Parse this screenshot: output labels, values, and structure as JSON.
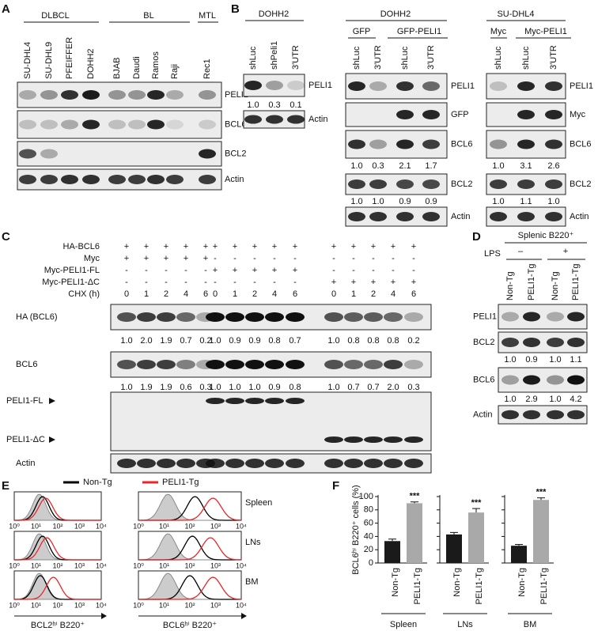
{
  "panel_labels": [
    "A",
    "B",
    "C",
    "D",
    "E",
    "F"
  ],
  "a": {
    "groups": [
      "DLBCL",
      "BL",
      "MTL"
    ],
    "lanes": [
      "SU-DHL4",
      "SU-DHL9",
      "PFEIFFER",
      "DOHH2",
      "BJAB",
      "Daudi",
      "Ramos",
      "Raji",
      "Rec1"
    ],
    "blots": [
      "PELI1",
      "BCL6",
      "BCL2",
      "Actin"
    ]
  },
  "b1": {
    "title": "DOHH2",
    "lanes": [
      "shLuc",
      "shPeli1",
      "3′UTR"
    ],
    "blots": [
      "PELI1",
      "Actin"
    ],
    "quant": [
      "1.0",
      "0.3",
      "0.1"
    ]
  },
  "b2": {
    "title": "DOHH2",
    "groups": [
      "GFP",
      "GFP-PELI1"
    ],
    "lanes": [
      "shLuc",
      "3′UTR",
      "shLuc",
      "3′UTR"
    ],
    "blots": [
      "PELI1",
      "GFP",
      "BCL6",
      "BCL2",
      "Actin"
    ],
    "quant_bcl6": [
      "1.0",
      "0.3",
      "2.1",
      "1.7"
    ],
    "quant_bcl2": [
      "1.0",
      "1.0",
      "0.9",
      "0.9"
    ]
  },
  "b3": {
    "title": "SU-DHL4",
    "groups": [
      "Myc",
      "Myc-PELI1"
    ],
    "lanes": [
      "shLuc",
      "shLuc",
      "3′UTR"
    ],
    "blots": [
      "PELI1",
      "Myc",
      "BCL6",
      "BCL2",
      "Actin"
    ],
    "quant_bcl6": [
      "1.0",
      "3.1",
      "2.6"
    ],
    "quant_bcl2": [
      "1.0",
      "1.1",
      "1.0"
    ]
  },
  "c": {
    "conditions": [
      "HA-BCL6",
      "Myc",
      "Myc-PELI1-FL",
      "Myc-PELI1-ΔC",
      "CHX (h)"
    ],
    "signs": [
      [
        "+",
        "+",
        "+",
        "+",
        "+",
        "+",
        "+",
        "+",
        "+",
        "+",
        "+",
        "+",
        "+",
        "+",
        "+"
      ],
      [
        "+",
        "+",
        "+",
        "+",
        "+",
        "-",
        "-",
        "-",
        "-",
        "-",
        "-",
        "-",
        "-",
        "-",
        "-"
      ],
      [
        "-",
        "-",
        "-",
        "-",
        "-",
        "+",
        "+",
        "+",
        "+",
        "+",
        "-",
        "-",
        "-",
        "-",
        "-"
      ],
      [
        "-",
        "-",
        "-",
        "-",
        "-",
        "-",
        "-",
        "-",
        "-",
        "-",
        "+",
        "+",
        "+",
        "+",
        "+"
      ],
      [
        "0",
        "1",
        "2",
        "4",
        "6",
        "0",
        "1",
        "2",
        "4",
        "6",
        "0",
        "1",
        "2",
        "4",
        "6"
      ]
    ],
    "blots": [
      "HA (BCL6)",
      "BCL6",
      "PELI1-FL",
      "PELI1-ΔC",
      "Actin"
    ],
    "quant_ha": [
      "1.0",
      "2.0",
      "1.9",
      "0.7",
      "0.2",
      "1.0",
      "0.9",
      "0.9",
      "0.8",
      "0.7",
      "1.0",
      "0.8",
      "0.8",
      "0.8",
      "0.2"
    ],
    "quant_bcl6": [
      "1.0",
      "1.9",
      "1.9",
      "0.6",
      "0.3",
      "1.0",
      "1.0",
      "1.0",
      "0.9",
      "0.8",
      "1.0",
      "0.7",
      "0.7",
      "2.0",
      "0.3"
    ]
  },
  "d": {
    "title": "Splenic B220⁺",
    "treatment": "LPS",
    "signs": [
      "–",
      "+"
    ],
    "lanes": [
      "Non-Tg",
      "PELI1-Tg",
      "Non-Tg",
      "PELI1-Tg"
    ],
    "blots": [
      "PELI1",
      "BCL2",
      "BCL6",
      "Actin"
    ],
    "quant_bcl2": [
      "1.0",
      "0.9",
      "1.0",
      "1.1"
    ],
    "quant_bcl6": [
      "1.0",
      "2.9",
      "1.0",
      "4.2"
    ]
  },
  "e": {
    "legend": [
      "Non-Tg",
      "PELI1-Tg"
    ],
    "legend_colors": [
      "#000000",
      "#e8262a"
    ],
    "rows": [
      "Spleen",
      "LNs",
      "BM"
    ],
    "xticks": [
      "10⁰",
      "10¹",
      "10²",
      "10³",
      "10⁴"
    ],
    "xlabels": [
      "BCL2ʰⁱ B220⁺",
      "BCL6ʰⁱ B220⁺"
    ]
  },
  "chart_data": [
    {
      "type": "bar",
      "title": "Spleen",
      "ylabel": "BCL6ʰⁱ B220⁺ cells (%)",
      "categories": [
        "Non-Tg",
        "PELI1-Tg"
      ],
      "values": [
        33,
        90
      ],
      "errors": [
        3,
        2
      ],
      "colors": [
        "#1a1a1a",
        "#a9a9a9"
      ],
      "annotations": [
        null,
        "***"
      ],
      "ylim": [
        0,
        100
      ],
      "yticks": [
        0,
        20,
        40,
        60,
        80,
        100
      ]
    },
    {
      "type": "bar",
      "title": "LNs",
      "categories": [
        "Non-Tg",
        "PELI1-Tg"
      ],
      "values": [
        43,
        76
      ],
      "errors": [
        3,
        6
      ],
      "colors": [
        "#1a1a1a",
        "#a9a9a9"
      ],
      "annotations": [
        null,
        "***"
      ],
      "ylim": [
        0,
        100
      ]
    },
    {
      "type": "bar",
      "title": "BM",
      "categories": [
        "Non-Tg",
        "PELI1-Tg"
      ],
      "values": [
        26,
        95
      ],
      "errors": [
        2,
        3
      ],
      "colors": [
        "#1a1a1a",
        "#a9a9a9"
      ],
      "annotations": [
        null,
        "***"
      ],
      "ylim": [
        0,
        100
      ]
    }
  ]
}
